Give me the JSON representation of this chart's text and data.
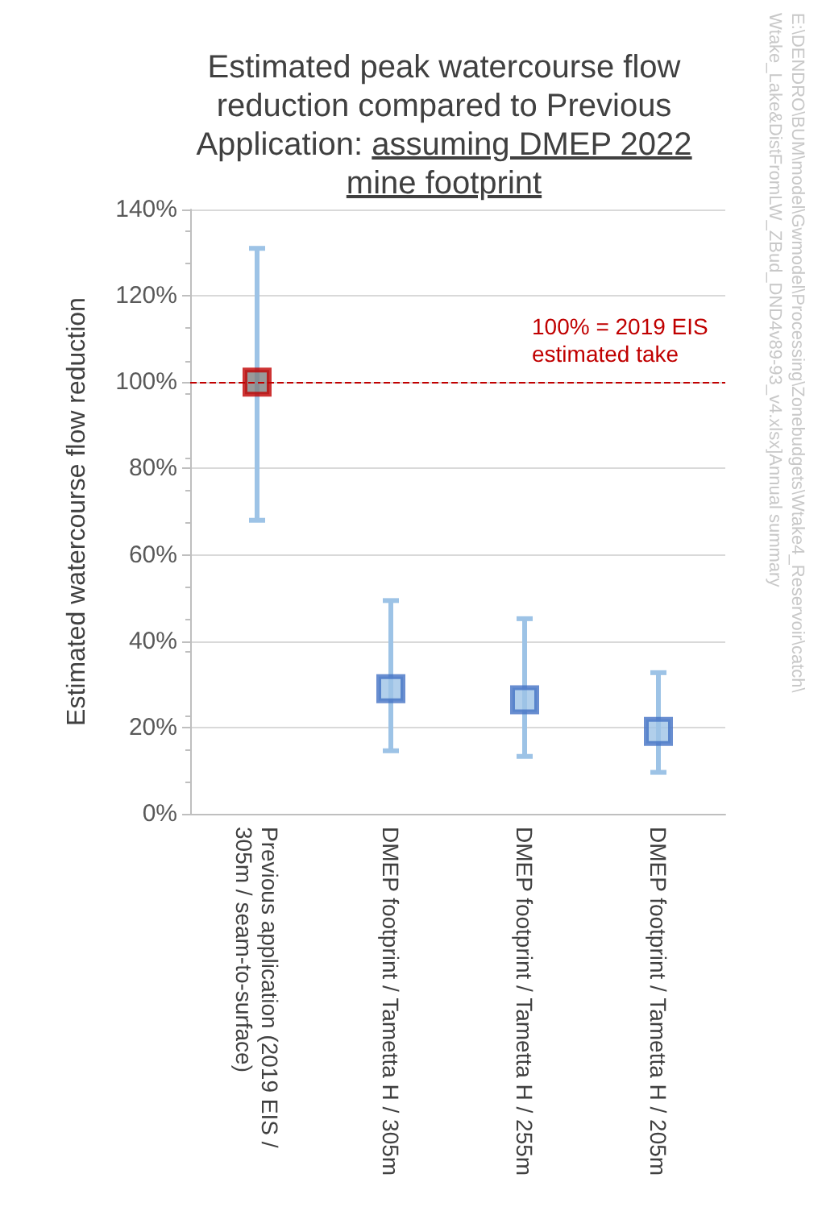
{
  "chart_data": {
    "type": "scatter",
    "title": "Estimated peak watercourse flow reduction compared to Previous Application:",
    "subtitle": "assuming DMEP 2022 mine footprint",
    "ylabel": "Estimated watercourse flow reduction",
    "categories": [
      "Previous application (2019 EIS / 305m / seam-to-surface)",
      "DMEP footprint / Tametta H / 305m",
      "DMEP footprint / Tametta H / 255m",
      "DMEP footprint / Tametta H / 205m"
    ],
    "values": [
      100,
      29,
      26.4,
      19.1
    ],
    "colors": [
      "#7f7f7f",
      "#9dc3e6",
      "#9dc3e6",
      "#9dc3e6"
    ],
    "errors": [
      [
        68,
        131
      ],
      [
        14.6,
        49.4
      ],
      [
        13.3,
        45.2
      ],
      [
        9.6,
        32.7
      ]
    ],
    "ylim": [
      0,
      140
    ],
    "yticks": [
      {
        "value": 0,
        "label": "0%"
      },
      {
        "value": 20,
        "label": "20%"
      },
      {
        "value": 40,
        "label": "40%"
      },
      {
        "value": 60,
        "label": "60%"
      },
      {
        "value": 80,
        "label": "80%"
      },
      {
        "value": 100,
        "label": "100%"
      },
      {
        "value": 120,
        "label": "120%"
      },
      {
        "value": 140,
        "label": "140%"
      }
    ],
    "ref_lines": [
      {
        "axis": "y",
        "value": 100,
        "label": "100% = 2019 EIS estimated take",
        "color": "#c00000",
        "line_style": "dashed"
      }
    ],
    "annotations": [
      "E:\\DENDRO\\BUM\\model\\Gwmodel\\Processing\\Zonebudgets\\Wtake4_Reservoir\\catch\\",
      "Wtake_Lake&DistFromLW_ZBud_DND4v89-93_v4.xlsx]Annual summary"
    ],
    "grid": "y",
    "marker": "square"
  }
}
